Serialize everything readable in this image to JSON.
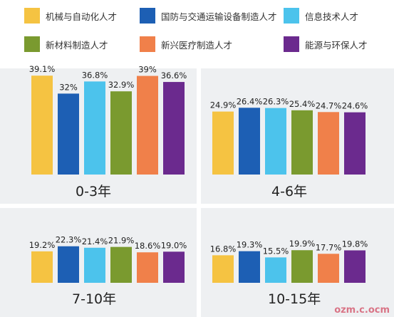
{
  "legend": [
    {
      "label": "机械与自动化人才",
      "color": "#f5c342"
    },
    {
      "label": "国防与交通运输设备制造人才",
      "color": "#1d5fb4"
    },
    {
      "label": "信息技术人才",
      "color": "#4cc3ec"
    },
    {
      "label": "新材料制造人才",
      "color": "#7a9a2f"
    },
    {
      "label": "新兴医疗制造人才",
      "color": "#f0804a"
    },
    {
      "label": "能源与环保人才",
      "color": "#6b2a8e"
    }
  ],
  "watermark": "ozm.c.ocm",
  "chart_data": [
    {
      "type": "bar",
      "title": "0-3年",
      "categories": [
        "机械与自动化人才",
        "国防与交通运输设备制造人才",
        "信息技术人才",
        "新材料制造人才",
        "新兴医疗制造人才",
        "能源与环保人才"
      ],
      "values": [
        39.1,
        32,
        36.8,
        32.9,
        39,
        36.6
      ],
      "labels": [
        "39.1%",
        "32%",
        "36.8%",
        "32.9%",
        "39%",
        "36.6%"
      ],
      "ylim": [
        0,
        42
      ]
    },
    {
      "type": "bar",
      "title": "4-6年",
      "categories": [
        "机械与自动化人才",
        "国防与交通运输设备制造人才",
        "信息技术人才",
        "新材料制造人才",
        "新兴医疗制造人才",
        "能源与环保人才"
      ],
      "values": [
        24.9,
        26.4,
        26.3,
        25.4,
        24.7,
        24.6
      ],
      "labels": [
        "24.9%",
        "26.4%",
        "26.3%",
        "25.4%",
        "24.7%",
        "24.6%"
      ],
      "ylim": [
        0,
        42
      ]
    },
    {
      "type": "bar",
      "title": "7-10年",
      "categories": [
        "机械与自动化人才",
        "国防与交通运输设备制造人才",
        "信息技术人才",
        "新材料制造人才",
        "新兴医疗制造人才",
        "能源与环保人才"
      ],
      "values": [
        19.2,
        22.3,
        21.4,
        21.9,
        18.6,
        19.0
      ],
      "labels": [
        "19.2%",
        "22.3%",
        "21.4%",
        "21.9%",
        "18.6%",
        "19.0%"
      ],
      "ylim": [
        0,
        42
      ]
    },
    {
      "type": "bar",
      "title": "10-15年",
      "categories": [
        "机械与自动化人才",
        "国防与交通运输设备制造人才",
        "信息技术人才",
        "新材料制造人才",
        "新兴医疗制造人才",
        "能源与环保人才"
      ],
      "values": [
        16.8,
        19.3,
        15.5,
        19.9,
        17.7,
        19.8
      ],
      "labels": [
        "16.8%",
        "19.3%",
        "15.5%",
        "19.9%",
        "17.7%",
        "19.8%"
      ],
      "ylim": [
        0,
        42
      ]
    }
  ]
}
